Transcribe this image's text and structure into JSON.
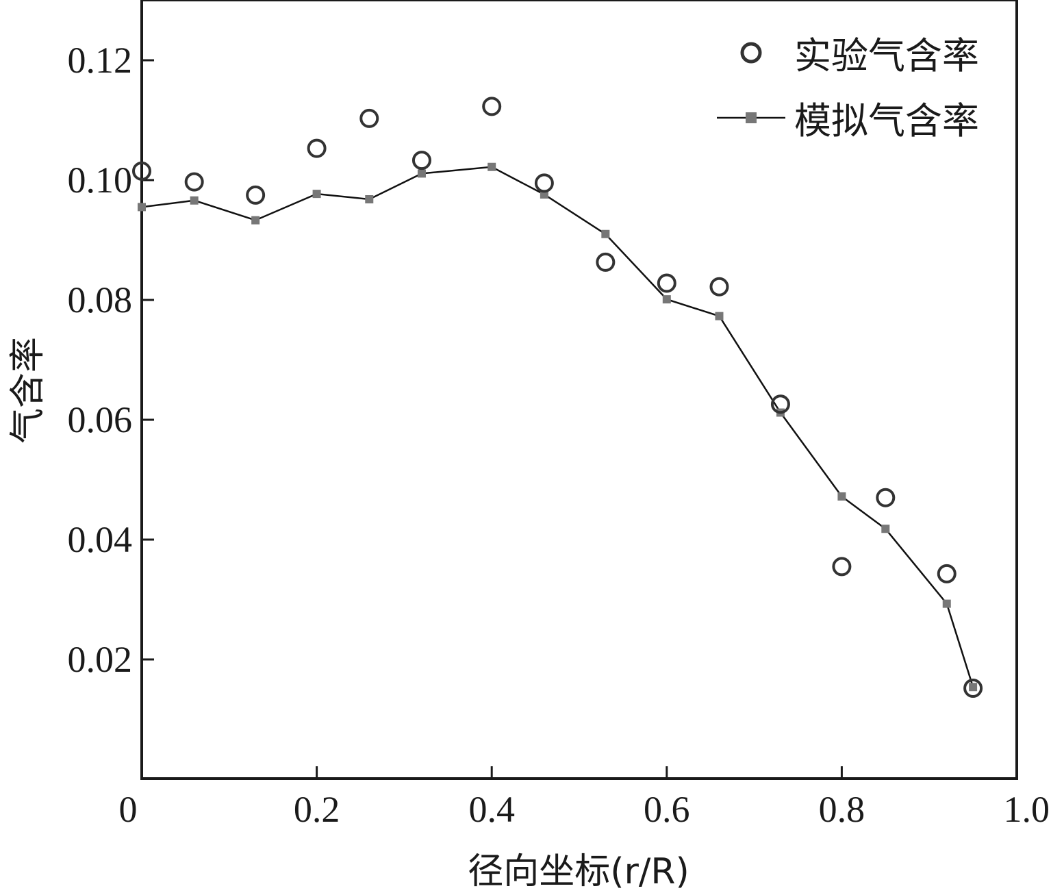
{
  "chart_data": {
    "type": "scatter",
    "title": "",
    "xlabel": "径向坐标(r/R)",
    "ylabel": "气含率",
    "xlim": [
      0,
      1.0
    ],
    "ylim": [
      0,
      0.13
    ],
    "x_ticks": [
      0,
      0.2,
      0.4,
      0.6,
      0.8,
      1.0
    ],
    "x_tick_labels": [
      "0",
      "0.2",
      "0.4",
      "0.6",
      "0.8",
      "1.0"
    ],
    "y_ticks": [
      0.02,
      0.04,
      0.06,
      0.08,
      0.1,
      0.12
    ],
    "y_tick_labels": [
      "0.02",
      "0.04",
      "0.06",
      "0.08",
      "0.10",
      "0.12"
    ],
    "grid": false,
    "legend_position": "top-right",
    "series": [
      {
        "name": "实验气含率",
        "kind": "scatter",
        "marker": "open-circle",
        "color": "#333333",
        "x": [
          0.0,
          0.06,
          0.13,
          0.2,
          0.26,
          0.32,
          0.4,
          0.46,
          0.53,
          0.6,
          0.66,
          0.73,
          0.8,
          0.85,
          0.92,
          0.95
        ],
        "y": [
          0.1015,
          0.0997,
          0.0975,
          0.1053,
          0.1103,
          0.1033,
          0.1123,
          0.0995,
          0.0863,
          0.0828,
          0.0822,
          0.0626,
          0.0355,
          0.047,
          0.0343,
          0.0152
        ]
      },
      {
        "name": "模拟气含率",
        "kind": "line",
        "marker": "filled-square",
        "color": "#777777",
        "line_color": "#111111",
        "x": [
          0.0,
          0.06,
          0.13,
          0.2,
          0.26,
          0.32,
          0.4,
          0.46,
          0.53,
          0.6,
          0.66,
          0.73,
          0.8,
          0.85,
          0.92,
          0.95
        ],
        "y": [
          0.0955,
          0.0966,
          0.0933,
          0.0977,
          0.0968,
          0.1011,
          0.1022,
          0.0976,
          0.091,
          0.0801,
          0.0773,
          0.0612,
          0.0472,
          0.0418,
          0.0293,
          0.0154
        ]
      }
    ]
  }
}
